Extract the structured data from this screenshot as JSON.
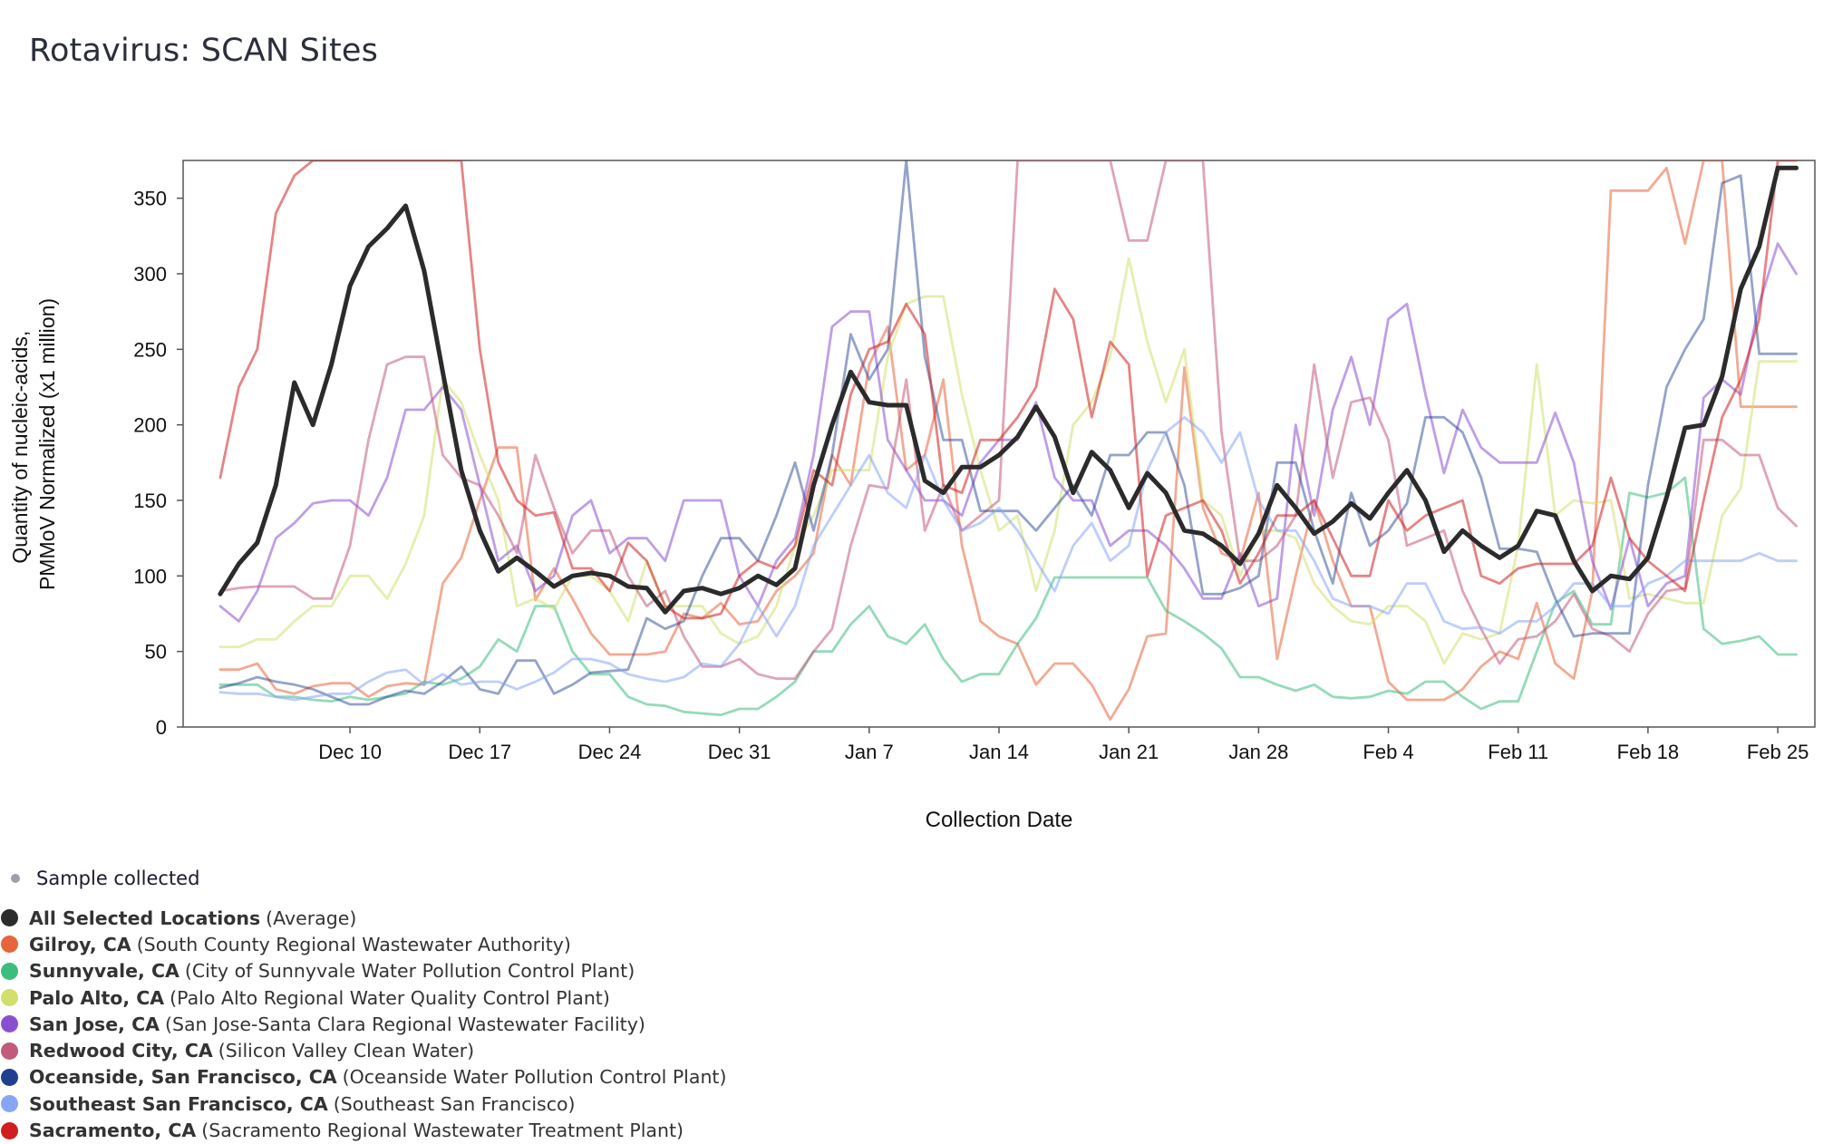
{
  "title": "Rotavirus: SCAN Sites",
  "legend": {
    "sample_label": "Sample collected",
    "items": [
      {
        "name": "All Selected Locations",
        "desc": "(Average)",
        "color": "#2b2b2b"
      },
      {
        "name": "Gilroy, CA",
        "desc": "(South County Regional Wastewater Authority)",
        "color": "#e8643a"
      },
      {
        "name": "Sunnyvale, CA",
        "desc": "(City of Sunnyvale Water Pollution Control Plant)",
        "color": "#3dbd7d"
      },
      {
        "name": "Palo Alto, CA",
        "desc": "(Palo Alto Regional Water Quality Control Plant)",
        "color": "#d2e06b"
      },
      {
        "name": "San Jose, CA",
        "desc": "(San Jose-Santa Clara Regional Wastewater Facility)",
        "color": "#8a4fd1"
      },
      {
        "name": "Redwood City, CA",
        "desc": "(Silicon Valley Clean Water)",
        "color": "#c25a7c"
      },
      {
        "name": "Oceanside, San Francisco, CA",
        "desc": "(Oceanside Water Pollution Control Plant)",
        "color": "#203f8e"
      },
      {
        "name": "Southeast San Francisco, CA",
        "desc": "(Southeast San Francisco)",
        "color": "#86a6f5"
      },
      {
        "name": "Sacramento, CA",
        "desc": "(Sacramento Regional Wastewater Treatment Plant)",
        "color": "#cf1f1f"
      }
    ]
  },
  "chart_data": {
    "type": "line",
    "ylabel_lines": [
      "Quantity of nucleic-acids,",
      "PMMoV Normalized (x1 million)"
    ],
    "xlabel": "Collection Date",
    "ylim": [
      0,
      375
    ],
    "xlim": [
      "Dec 1",
      "Feb 27"
    ],
    "yticks": [
      0,
      50,
      100,
      150,
      200,
      250,
      300,
      350
    ],
    "xticks": [
      {
        "date": "Dec 10",
        "label": "Dec 10"
      },
      {
        "date": "Dec 17",
        "label": "Dec 17"
      },
      {
        "date": "Dec 24",
        "label": "Dec 24"
      },
      {
        "date": "Dec 31",
        "label": "Dec 31"
      },
      {
        "date": "Jan 7",
        "label": "Jan 7"
      },
      {
        "date": "Jan 14",
        "label": "Jan 14"
      },
      {
        "date": "Jan 21",
        "label": "Jan 21"
      },
      {
        "date": "Jan 28",
        "label": "Jan 28"
      },
      {
        "date": "Feb 4",
        "label": "Feb 4"
      },
      {
        "date": "Feb 11",
        "label": "Feb 11"
      },
      {
        "date": "Feb 18",
        "label": "Feb 18"
      },
      {
        "date": "Feb 25",
        "label": "Feb 25"
      }
    ],
    "x": [
      "Dec 3",
      "Dec 4",
      "Dec 5",
      "Dec 6",
      "Dec 7",
      "Dec 8",
      "Dec 9",
      "Dec 10",
      "Dec 11",
      "Dec 12",
      "Dec 13",
      "Dec 14",
      "Dec 15",
      "Dec 16",
      "Dec 17",
      "Dec 18",
      "Dec 19",
      "Dec 20",
      "Dec 21",
      "Dec 22",
      "Dec 23",
      "Dec 24",
      "Dec 25",
      "Dec 26",
      "Dec 27",
      "Dec 28",
      "Dec 29",
      "Dec 30",
      "Dec 31",
      "Jan 1",
      "Jan 2",
      "Jan 3",
      "Jan 4",
      "Jan 5",
      "Jan 6",
      "Jan 7",
      "Jan 8",
      "Jan 9",
      "Jan 10",
      "Jan 11",
      "Jan 12",
      "Jan 13",
      "Jan 14",
      "Jan 15",
      "Jan 16",
      "Jan 17",
      "Jan 18",
      "Jan 19",
      "Jan 20",
      "Jan 21",
      "Jan 22",
      "Jan 23",
      "Jan 24",
      "Jan 25",
      "Jan 26",
      "Jan 27",
      "Jan 28",
      "Jan 29",
      "Jan 30",
      "Jan 31",
      "Feb 1",
      "Feb 2",
      "Feb 3",
      "Feb 4",
      "Feb 5",
      "Feb 6",
      "Feb 7",
      "Feb 8",
      "Feb 9",
      "Feb 10",
      "Feb 11",
      "Feb 12",
      "Feb 13",
      "Feb 14",
      "Feb 15",
      "Feb 16",
      "Feb 17",
      "Feb 18",
      "Feb 19",
      "Feb 20",
      "Feb 21",
      "Feb 22",
      "Feb 23",
      "Feb 24",
      "Feb 25",
      "Feb 26"
    ],
    "series": [
      {
        "name": "Gilroy, CA",
        "color": "#e8643a",
        "width": 2.8,
        "opacity": 0.55,
        "values": [
          38,
          38,
          42,
          25,
          22,
          27,
          29,
          29,
          20,
          27,
          29,
          28,
          95,
          112,
          150,
          185,
          185,
          84,
          105,
          85,
          62,
          48,
          48,
          48,
          50,
          75,
          72,
          82,
          68,
          70,
          90,
          100,
          115,
          180,
          160,
          240,
          265,
          170,
          180,
          230,
          120,
          70,
          60,
          55,
          28,
          42,
          42,
          28,
          5,
          25,
          60,
          62,
          238,
          145,
          115,
          110,
          155,
          45,
          100,
          150,
          110,
          80,
          80,
          30,
          18,
          18,
          18,
          25,
          40,
          50,
          45,
          82,
          42,
          32,
          90,
          355,
          355,
          355,
          370,
          320,
          375,
          375,
          212,
          212,
          212,
          212
        ]
      },
      {
        "name": "Sunnyvale, CA",
        "color": "#3dbd7d",
        "width": 2.8,
        "opacity": 0.55,
        "values": [
          28,
          28,
          28,
          20,
          20,
          18,
          17,
          20,
          18,
          20,
          22,
          30,
          28,
          32,
          40,
          58,
          50,
          80,
          80,
          50,
          35,
          35,
          20,
          15,
          14,
          10,
          9,
          8,
          12,
          12,
          20,
          30,
          50,
          50,
          68,
          80,
          60,
          55,
          68,
          45,
          30,
          35,
          35,
          55,
          72,
          99,
          99,
          99,
          99,
          99,
          99,
          77,
          70,
          62,
          52,
          33,
          33,
          28,
          24,
          28,
          20,
          19,
          20,
          24,
          22,
          30,
          30,
          20,
          12,
          17,
          17,
          50,
          82,
          90,
          68,
          68,
          155,
          152,
          155,
          165,
          65,
          55,
          57,
          60,
          48,
          48
        ]
      },
      {
        "name": "Palo Alto, CA",
        "color": "#d2e06b",
        "width": 2.8,
        "opacity": 0.55,
        "values": [
          53,
          53,
          58,
          58,
          70,
          80,
          80,
          100,
          100,
          85,
          108,
          140,
          230,
          215,
          180,
          150,
          80,
          85,
          78,
          100,
          100,
          90,
          70,
          110,
          80,
          80,
          80,
          62,
          55,
          60,
          80,
          120,
          140,
          170,
          170,
          170,
          245,
          280,
          285,
          285,
          220,
          170,
          130,
          140,
          90,
          130,
          200,
          215,
          245,
          310,
          255,
          215,
          250,
          150,
          140,
          100,
          130,
          130,
          125,
          95,
          80,
          70,
          68,
          80,
          80,
          70,
          42,
          62,
          58,
          62,
          120,
          240,
          140,
          150,
          148,
          150,
          85,
          88,
          85,
          82,
          82,
          140,
          158,
          242,
          242,
          242
        ]
      },
      {
        "name": "San Jose, CA",
        "color": "#8a4fd1",
        "width": 2.8,
        "opacity": 0.55,
        "values": [
          80,
          70,
          90,
          125,
          135,
          148,
          150,
          150,
          140,
          165,
          210,
          210,
          225,
          210,
          160,
          110,
          120,
          90,
          100,
          140,
          150,
          115,
          125,
          125,
          110,
          150,
          150,
          150,
          100,
          80,
          110,
          125,
          180,
          265,
          275,
          275,
          190,
          170,
          150,
          150,
          140,
          175,
          190,
          190,
          215,
          165,
          150,
          150,
          120,
          130,
          130,
          120,
          105,
          85,
          85,
          115,
          80,
          85,
          200,
          140,
          210,
          245,
          200,
          270,
          280,
          220,
          168,
          210,
          185,
          175,
          175,
          175,
          208,
          175,
          110,
          78,
          125,
          80,
          95,
          100,
          218,
          230,
          220,
          280,
          320,
          300
        ]
      },
      {
        "name": "Redwood City, CA",
        "color": "#c25a7c",
        "width": 2.8,
        "opacity": 0.55,
        "values": [
          90,
          92,
          93,
          93,
          93,
          85,
          85,
          120,
          190,
          240,
          245,
          245,
          180,
          165,
          160,
          140,
          115,
          180,
          145,
          115,
          130,
          130,
          100,
          80,
          90,
          60,
          40,
          40,
          45,
          35,
          32,
          32,
          50,
          65,
          120,
          160,
          158,
          230,
          130,
          160,
          130,
          140,
          150,
          375,
          375,
          375,
          375,
          375,
          375,
          322,
          322,
          375,
          375,
          375,
          195,
          110,
          110,
          120,
          140,
          240,
          165,
          215,
          218,
          190,
          120,
          125,
          130,
          90,
          65,
          42,
          58,
          60,
          70,
          88,
          65,
          60,
          50,
          75,
          90,
          92,
          190,
          190,
          180,
          180,
          145,
          133
        ]
      },
      {
        "name": "Oceanside, San Francisco, CA",
        "color": "#203f8e",
        "width": 2.8,
        "opacity": 0.48,
        "values": [
          26,
          29,
          33,
          30,
          28,
          25,
          20,
          15,
          15,
          20,
          24,
          22,
          30,
          40,
          25,
          22,
          44,
          44,
          22,
          28,
          36,
          37,
          38,
          72,
          65,
          70,
          100,
          125,
          125,
          110,
          140,
          175,
          130,
          180,
          260,
          230,
          250,
          375,
          245,
          190,
          190,
          143,
          143,
          143,
          130,
          145,
          160,
          140,
          180,
          180,
          195,
          195,
          160,
          88,
          88,
          92,
          100,
          175,
          175,
          130,
          95,
          155,
          120,
          130,
          148,
          205,
          205,
          195,
          165,
          118,
          118,
          116,
          85,
          60,
          62,
          62,
          62,
          160,
          225,
          250,
          270,
          360,
          365,
          247,
          247,
          247
        ]
      },
      {
        "name": "Southeast San Francisco, CA",
        "color": "#86a6f5",
        "width": 2.8,
        "opacity": 0.55,
        "values": [
          23,
          22,
          22,
          20,
          18,
          20,
          22,
          22,
          30,
          36,
          38,
          28,
          35,
          28,
          30,
          30,
          25,
          30,
          36,
          45,
          45,
          42,
          35,
          32,
          30,
          33,
          42,
          40,
          55,
          80,
          60,
          80,
          120,
          140,
          160,
          180,
          155,
          145,
          180,
          150,
          130,
          135,
          145,
          130,
          110,
          90,
          120,
          135,
          110,
          120,
          170,
          195,
          205,
          195,
          175,
          195,
          150,
          130,
          130,
          110,
          85,
          80,
          80,
          75,
          95,
          95,
          70,
          65,
          66,
          62,
          70,
          70,
          80,
          95,
          95,
          80,
          80,
          95,
          100,
          110,
          110,
          110,
          110,
          115,
          110,
          110
        ]
      },
      {
        "name": "Sacramento, CA",
        "color": "#cf1f1f",
        "width": 2.8,
        "opacity": 0.55,
        "values": [
          165,
          225,
          250,
          340,
          365,
          375,
          375,
          375,
          375,
          375,
          375,
          375,
          375,
          375,
          250,
          175,
          150,
          140,
          142,
          105,
          105,
          90,
          122,
          110,
          80,
          72,
          72,
          75,
          100,
          110,
          105,
          120,
          170,
          160,
          220,
          250,
          255,
          280,
          260,
          160,
          155,
          190,
          190,
          205,
          225,
          290,
          270,
          205,
          255,
          240,
          100,
          140,
          145,
          150,
          130,
          95,
          115,
          140,
          140,
          150,
          125,
          100,
          100,
          150,
          130,
          140,
          145,
          150,
          100,
          95,
          105,
          108,
          108,
          108,
          120,
          165,
          125,
          110,
          100,
          90,
          150,
          205,
          230,
          270,
          375,
          375
        ]
      },
      {
        "name": "All Selected Locations",
        "color": "#2b2b2b",
        "width": 5,
        "opacity": 1,
        "values": [
          88,
          108,
          122,
          160,
          228,
          200,
          240,
          292,
          318,
          330,
          345,
          302,
          235,
          170,
          130,
          103,
          112,
          103,
          93,
          100,
          102,
          100,
          93,
          92,
          76,
          90,
          92,
          88,
          92,
          100,
          94,
          105,
          160,
          200,
          235,
          215,
          213,
          213,
          163,
          155,
          172,
          172,
          180,
          192,
          212,
          192,
          155,
          182,
          170,
          145,
          168,
          155,
          130,
          128,
          120,
          108,
          128,
          160,
          145,
          128,
          136,
          148,
          138,
          155,
          170,
          150,
          116,
          130,
          120,
          112,
          120,
          143,
          140,
          110,
          90,
          100,
          98,
          112,
          152,
          198,
          200,
          232,
          290,
          318,
          370,
          370
        ]
      }
    ]
  }
}
